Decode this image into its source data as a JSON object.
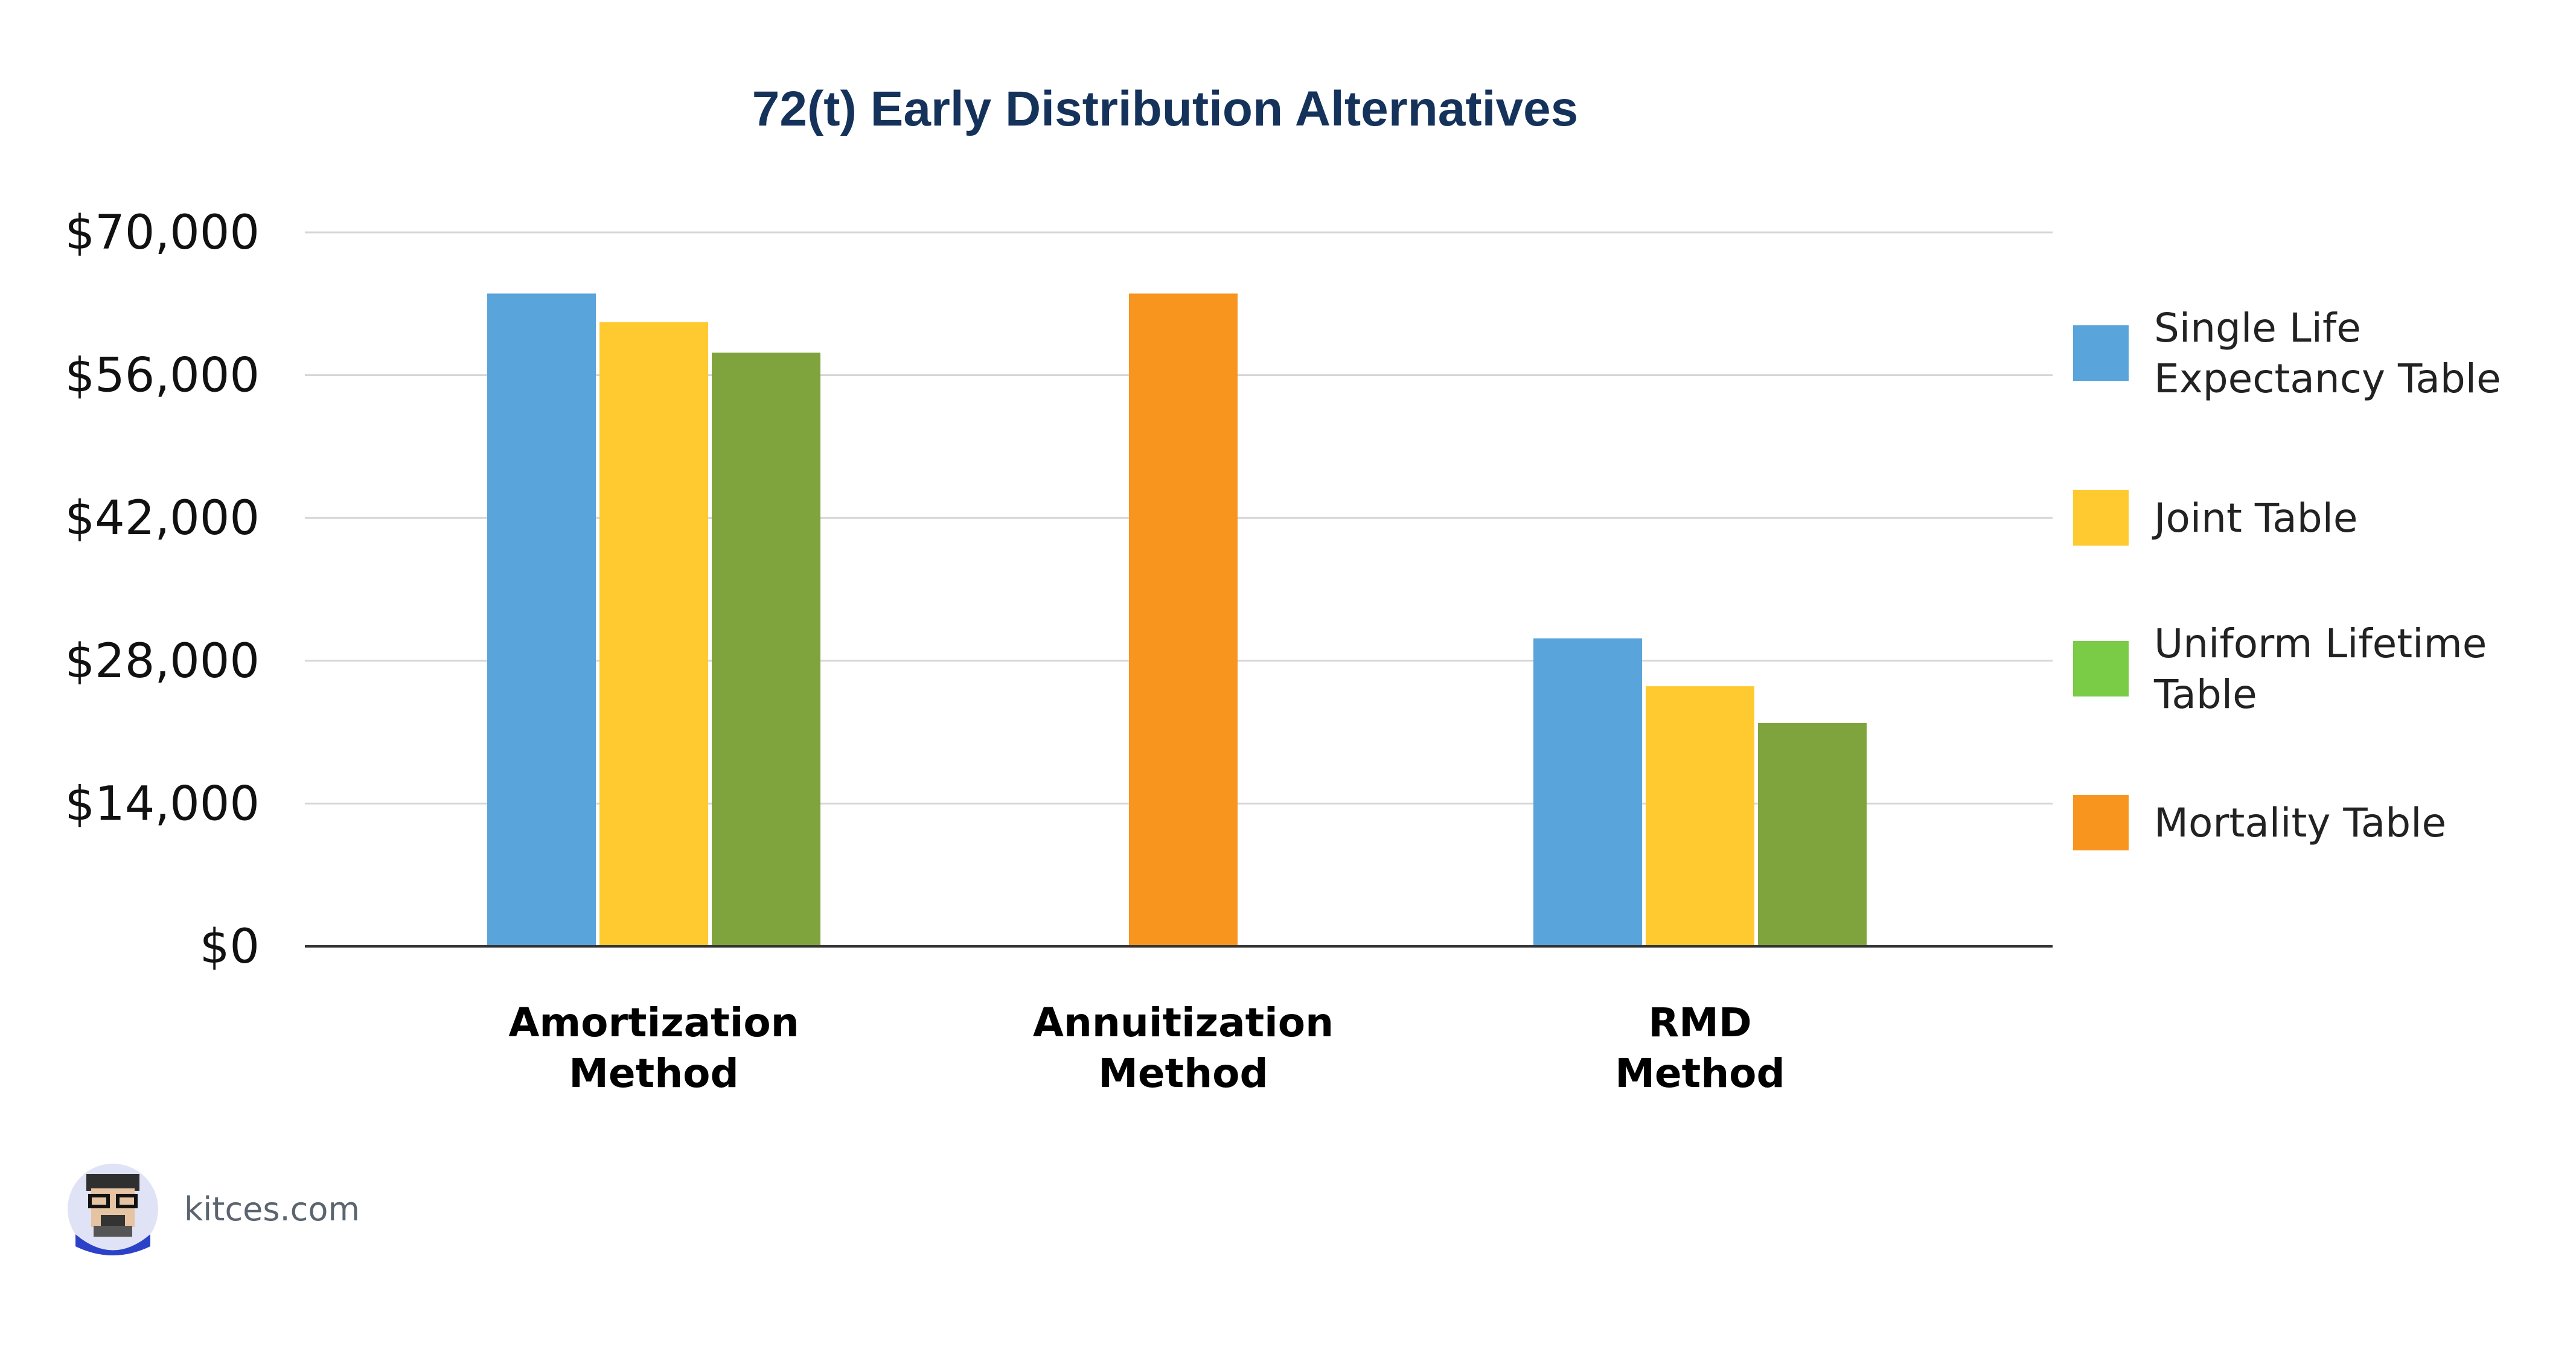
{
  "colors": {
    "single_life": "#58a4db",
    "joint": "#ffca2f",
    "uniform_bar": "#80a43d",
    "uniform_legend": "#7acb46",
    "mortality": "#f7951f",
    "title": "#14325a",
    "grid": "#d6d6d6",
    "axis": "#333333"
  },
  "chart_data": {
    "type": "bar",
    "title": "72(t) Early Distribution Alternatives",
    "xlabel": "",
    "ylabel": "",
    "ylim": [
      0,
      70000
    ],
    "yticks": [
      0,
      14000,
      28000,
      42000,
      56000,
      70000
    ],
    "ytick_labels": [
      "$0",
      "$14,000",
      "$28,000",
      "$42,000",
      "$56,000",
      "$70,000"
    ],
    "grid": true,
    "legend_position": "right",
    "categories": [
      [
        "Amortization",
        "Method"
      ],
      [
        "Annuitization",
        "Method"
      ],
      [
        "RMD",
        "Method"
      ]
    ],
    "series": [
      {
        "name": "Single Life Expectancy Table",
        "legend_lines": [
          "Single Life",
          "Expectancy Table"
        ],
        "values": [
          64000,
          null,
          30200
        ],
        "color_key": "single_life",
        "legend_color_key": "single_life"
      },
      {
        "name": "Joint Table",
        "legend_lines": [
          "Joint Table"
        ],
        "values": [
          61200,
          null,
          25500
        ],
        "color_key": "joint",
        "legend_color_key": "joint"
      },
      {
        "name": "Uniform Lifetime Table",
        "legend_lines": [
          "Uniform Lifetime",
          "Table"
        ],
        "values": [
          58200,
          null,
          21900
        ],
        "color_key": "uniform_bar",
        "legend_color_key": "uniform_legend"
      },
      {
        "name": "Mortality Table",
        "legend_lines": [
          "Mortality Table"
        ],
        "values": [
          null,
          64000,
          null
        ],
        "color_key": "mortality",
        "legend_color_key": "mortality"
      }
    ]
  },
  "brand": {
    "text": "kitces.com",
    "logo_icon": "avatar-logo-icon"
  }
}
